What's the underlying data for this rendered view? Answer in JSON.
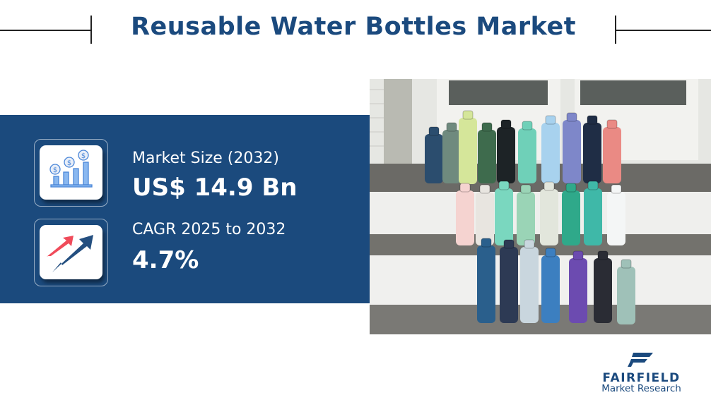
{
  "header": {
    "title": "Reusable Water Bottles Market"
  },
  "stats": [
    {
      "label": "Market Size (2032)",
      "value": "US$ 14.9 Bn",
      "icon": "money-bar-chart-icon"
    },
    {
      "label": "CAGR 2025 to 2032",
      "value": "4.7%",
      "icon": "growth-arrows-icon"
    }
  ],
  "colors": {
    "brand": "#1b4a7d",
    "accent_red": "#f04b5a",
    "icon_blue": "#5b9be6"
  },
  "photo": {
    "subject": "assorted reusable water bottles on steps"
  },
  "logo": {
    "brand": "FAIRFIELD",
    "sub": "Market Research"
  }
}
